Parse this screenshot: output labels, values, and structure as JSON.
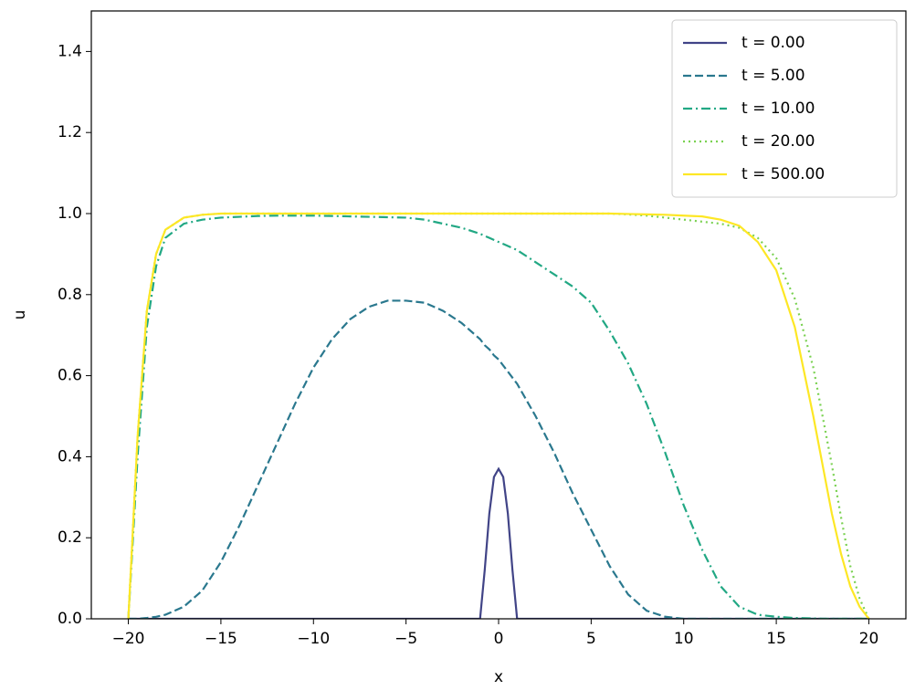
{
  "chart_data": {
    "type": "line",
    "xlabel": "x",
    "ylabel": "u",
    "x": [
      -20,
      -19.5,
      -19,
      -18.5,
      -18,
      -17,
      -16,
      -15,
      -14,
      -13,
      -12,
      -11,
      -10,
      -9,
      -8,
      -7,
      -6,
      -5,
      -4,
      -3,
      -2,
      -1,
      -0.75,
      -0.5,
      -0.25,
      0,
      0.25,
      0.5,
      0.75,
      1,
      2,
      3,
      4,
      5,
      6,
      7,
      8,
      9,
      10,
      11,
      12,
      13,
      14,
      15,
      16,
      17,
      17.5,
      18,
      18.5,
      19,
      19.5,
      20
    ],
    "series": [
      {
        "name": "t = 0.00",
        "color": "#414487",
        "style": "solid",
        "values": [
          0,
          0,
          0,
          0,
          0,
          0,
          0,
          0,
          0,
          0,
          0,
          0,
          0,
          0,
          0,
          0,
          0,
          0,
          0,
          0,
          0,
          0,
          0.12,
          0.26,
          0.35,
          0.37,
          0.35,
          0.26,
          0.12,
          0,
          0,
          0,
          0,
          0,
          0,
          0,
          0,
          0,
          0,
          0,
          0,
          0,
          0,
          0,
          0,
          0,
          0,
          0,
          0,
          0,
          0,
          0
        ]
      },
      {
        "name": "t = 5.00",
        "color": "#2a788e",
        "style": "dashed",
        "values": [
          0,
          0,
          0.002,
          0.005,
          0.01,
          0.03,
          0.07,
          0.14,
          0.23,
          0.33,
          0.43,
          0.53,
          0.62,
          0.69,
          0.74,
          0.77,
          0.785,
          0.785,
          0.78,
          0.76,
          0.73,
          0.69,
          0.675,
          0.665,
          0.65,
          0.64,
          0.625,
          0.61,
          0.595,
          0.58,
          0.5,
          0.41,
          0.31,
          0.22,
          0.13,
          0.06,
          0.02,
          0.005,
          0,
          0,
          0,
          0,
          0,
          0,
          0,
          0,
          0,
          0,
          0,
          0,
          0,
          0
        ]
      },
      {
        "name": "t = 10.00",
        "color": "#22a884",
        "style": "dashdot",
        "values": [
          0,
          0.4,
          0.72,
          0.87,
          0.94,
          0.975,
          0.985,
          0.99,
          0.992,
          0.994,
          0.995,
          0.995,
          0.995,
          0.994,
          0.993,
          0.992,
          0.991,
          0.99,
          0.985,
          0.975,
          0.965,
          0.95,
          0.945,
          0.94,
          0.935,
          0.93,
          0.925,
          0.92,
          0.915,
          0.91,
          0.88,
          0.85,
          0.82,
          0.78,
          0.71,
          0.63,
          0.53,
          0.41,
          0.28,
          0.17,
          0.08,
          0.03,
          0.01,
          0.005,
          0.002,
          0.001,
          0,
          0,
          0,
          0,
          0,
          0
        ]
      },
      {
        "name": "t = 20.00",
        "color": "#7ad151",
        "style": "dotted",
        "values": [
          0,
          0.45,
          0.76,
          0.9,
          0.96,
          0.99,
          0.997,
          1,
          1,
          1,
          1,
          1,
          1,
          1,
          1,
          1,
          1,
          1,
          1,
          1,
          1,
          1,
          1,
          1,
          1,
          1,
          1,
          1,
          1,
          1,
          1,
          1,
          1,
          1,
          1,
          0.998,
          0.995,
          0.99,
          0.985,
          0.98,
          0.975,
          0.965,
          0.94,
          0.89,
          0.79,
          0.62,
          0.5,
          0.38,
          0.25,
          0.13,
          0.05,
          0
        ]
      },
      {
        "name": "t = 500.00",
        "color": "#fde725",
        "style": "solid",
        "values": [
          0,
          0.45,
          0.76,
          0.9,
          0.96,
          0.99,
          0.997,
          1,
          1,
          1,
          1,
          1,
          1,
          1,
          1,
          1,
          1,
          1,
          1,
          1,
          1,
          1,
          1,
          1,
          1,
          1,
          1,
          1,
          1,
          1,
          1,
          1,
          1,
          1,
          1,
          0.999,
          0.998,
          0.997,
          0.995,
          0.993,
          0.985,
          0.97,
          0.93,
          0.86,
          0.72,
          0.5,
          0.38,
          0.26,
          0.16,
          0.08,
          0.03,
          0
        ]
      }
    ],
    "xlim": [
      -22,
      22
    ],
    "xticks": [
      {
        "value": -20,
        "label": "−20"
      },
      {
        "value": -15,
        "label": "−15"
      },
      {
        "value": -10,
        "label": "−10"
      },
      {
        "value": -5,
        "label": "−5"
      },
      0,
      5,
      10,
      15,
      20
    ],
    "ylim": [
      0,
      1.5
    ],
    "yticks": [
      {
        "value": 0,
        "label": "0.0"
      },
      0.2,
      0.4,
      0.6,
      0.8,
      {
        "value": 1,
        "label": "1.0"
      },
      1.2,
      1.4
    ],
    "legend": "upper right"
  }
}
